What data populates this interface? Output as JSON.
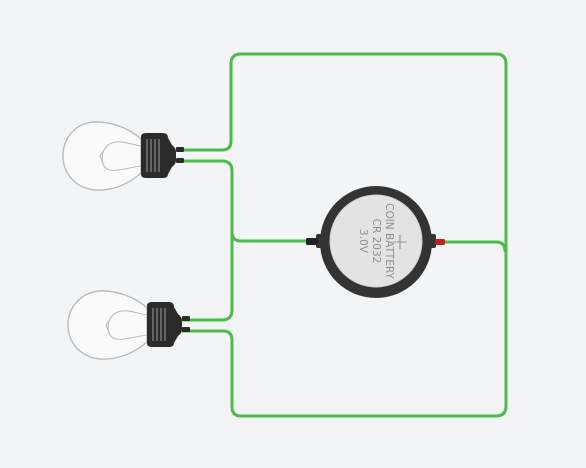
{
  "colors": {
    "background": "#f3f4f6",
    "wire": "#4cbb4a",
    "bulb_outline": "#b9bcbe",
    "socket": "#2b2b2b",
    "battery_body": "#333333",
    "battery_face": "#e3e3e3",
    "battery_text": "#8f8f8f",
    "negative_terminal": "#222222",
    "positive_terminal": "#c0201d"
  },
  "battery": {
    "line1": "COIN BATTERY",
    "line2": "CR 2032",
    "line3": "3.0V",
    "plus_symbol": "+"
  },
  "components": [
    {
      "name": "bulb-1",
      "type": "light-bulb-icon"
    },
    {
      "name": "bulb-2",
      "type": "light-bulb-icon"
    },
    {
      "name": "coin-battery",
      "type": "coin-cell-battery-icon"
    }
  ]
}
